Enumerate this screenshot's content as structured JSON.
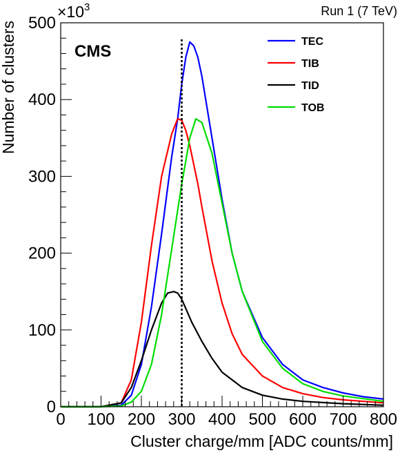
{
  "chart_data": {
    "type": "line",
    "title": "",
    "experiment_label": "CMS",
    "run_label": "Run 1 (7 TeV)",
    "xlabel": "Cluster charge/mm [ADC counts/mm]",
    "ylabel": "Number of clusters",
    "y_multiplier": "×10",
    "y_multiplier_exp": "3",
    "xlim": [
      0,
      800
    ],
    "ylim": [
      0,
      500
    ],
    "x_ticks": [
      "0",
      "100",
      "200",
      "300",
      "400",
      "500",
      "600",
      "700",
      "800"
    ],
    "y_ticks": [
      "0",
      "100",
      "200",
      "300",
      "400",
      "500"
    ],
    "x_tick_values": [
      0,
      100,
      200,
      300,
      400,
      500,
      600,
      700,
      800
    ],
    "y_tick_values": [
      0,
      100,
      200,
      300,
      400,
      500
    ],
    "reference_line_x": 300,
    "legend_position": "top-right",
    "series": [
      {
        "name": "TEC",
        "color": "#0000ff",
        "x": [
          0,
          100,
          150,
          175,
          200,
          225,
          250,
          275,
          290,
          300,
          310,
          320,
          330,
          340,
          350,
          375,
          400,
          425,
          450,
          500,
          550,
          600,
          650,
          700,
          750,
          800
        ],
        "y": [
          0,
          0,
          2,
          15,
          55,
          130,
          225,
          325,
          375,
          420,
          455,
          475,
          470,
          455,
          430,
          350,
          270,
          200,
          150,
          90,
          55,
          35,
          25,
          18,
          13,
          10
        ]
      },
      {
        "name": "TIB",
        "color": "#ff0000",
        "x": [
          0,
          100,
          150,
          175,
          200,
          225,
          250,
          275,
          290,
          300,
          310,
          320,
          340,
          350,
          375,
          400,
          425,
          450,
          500,
          550,
          600,
          650,
          700,
          750,
          800
        ],
        "y": [
          0,
          0,
          5,
          35,
          110,
          210,
          300,
          355,
          375,
          373,
          360,
          340,
          290,
          260,
          190,
          135,
          95,
          68,
          40,
          25,
          17,
          12,
          9,
          7,
          5
        ]
      },
      {
        "name": "TID",
        "color": "#000000",
        "x": [
          0,
          100,
          150,
          175,
          200,
          225,
          250,
          265,
          280,
          290,
          300,
          325,
          350,
          375,
          400,
          450,
          500,
          550,
          600,
          700,
          800
        ],
        "y": [
          0,
          0,
          5,
          25,
          60,
          100,
          135,
          148,
          150,
          148,
          140,
          110,
          85,
          63,
          45,
          25,
          15,
          10,
          7,
          4,
          2
        ]
      },
      {
        "name": "TOB",
        "color": "#00dd00",
        "x": [
          0,
          100,
          150,
          175,
          200,
          225,
          250,
          275,
          300,
          320,
          335,
          350,
          375,
          400,
          425,
          450,
          500,
          550,
          600,
          650,
          700,
          800
        ],
        "y": [
          0,
          0,
          1,
          6,
          20,
          55,
          120,
          205,
          290,
          350,
          375,
          370,
          330,
          265,
          200,
          150,
          85,
          50,
          30,
          20,
          14,
          7
        ]
      }
    ]
  }
}
